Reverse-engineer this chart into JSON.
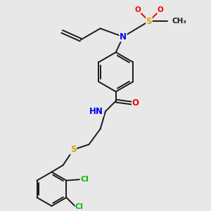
{
  "bg_color": "#e8e8e8",
  "atom_colors": {
    "C": "#1a1a1a",
    "N": "#0000ee",
    "O": "#ee0000",
    "S": "#ccaa00",
    "Cl": "#00bb00",
    "H": "#606060"
  },
  "bond_color": "#1a1a1a",
  "bond_width": 1.4,
  "dbo": 0.055,
  "font_size": 8.5,
  "fig_size": [
    3.0,
    3.0
  ],
  "dpi": 100
}
